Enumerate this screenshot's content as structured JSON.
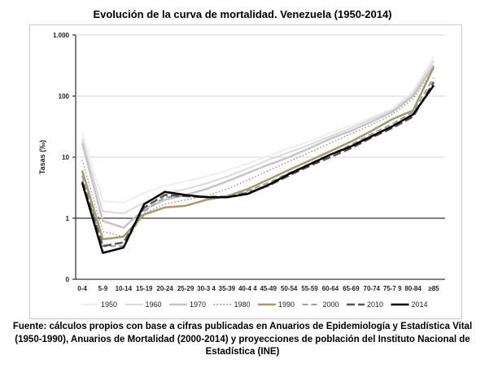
{
  "title": "Evolución de la curva de mortalidad. Venezuela (1950-2014)",
  "source_note": "Fuente: cálculos propios con base a cifras publicadas en Anuarios de Epidemiología y Estadística Vital (1950-1990), Anuarios de Mortalidad (2000-2014) y proyecciones de población del Instituto Nacional de Estadística (INE)",
  "chart_data": {
    "type": "line",
    "ylabel": "Tasas (‰)",
    "yscale": "log",
    "ylim": [
      0.1,
      1000
    ],
    "y_ticks": [
      {
        "value": 1000,
        "label": "1.000"
      },
      {
        "value": 100,
        "label": "100"
      },
      {
        "value": 10,
        "label": "10"
      },
      {
        "value": 1,
        "label": "1"
      },
      {
        "value": 0.1,
        "label": "0"
      }
    ],
    "categories": [
      "0-4",
      "5-9",
      "10-14",
      "15-19",
      "20-24",
      "25-29",
      "30-3 4",
      "35-39",
      "40-4 4",
      "45-49",
      "50-54",
      "55-59",
      "60-64",
      "65-69",
      "70-74",
      "75-7 9",
      "80-84",
      "≥85"
    ],
    "grid": "horizontal",
    "legend_position": "bottom",
    "series": [
      {
        "name": "1950",
        "color": "#eeeeee",
        "dash": "solid",
        "width": 2,
        "values": [
          25,
          1.9,
          1.8,
          2.6,
          3.4,
          4.0,
          4.8,
          6.0,
          7.8,
          10.5,
          14,
          18,
          25,
          33,
          45,
          62,
          120,
          450
        ]
      },
      {
        "name": "1960",
        "color": "#dadada",
        "dash": "solid",
        "width": 2,
        "values": [
          20,
          1.3,
          1.2,
          1.8,
          2.5,
          3.0,
          3.7,
          4.8,
          6.5,
          9.0,
          12,
          16,
          22,
          30,
          42,
          58,
          110,
          380
        ]
      },
      {
        "name": "1970",
        "color": "#c4c4c4",
        "dash": "solid",
        "width": 2.5,
        "values": [
          17,
          0.9,
          0.7,
          1.4,
          2.0,
          2.4,
          3.0,
          4.0,
          5.5,
          7.5,
          10,
          14,
          20,
          27,
          38,
          55,
          100,
          320
        ]
      },
      {
        "name": "1980",
        "color": "#9a9a9a",
        "dash": "dotted",
        "width": 1.5,
        "values": [
          9,
          0.6,
          0.5,
          1.2,
          1.7,
          2.0,
          2.3,
          3.0,
          4.2,
          6.0,
          8.5,
          12,
          17,
          24,
          34,
          50,
          90,
          280
        ]
      },
      {
        "name": "1990",
        "color": "#a39a6e",
        "dash": "solid",
        "width": 2.5,
        "values": [
          6,
          0.45,
          0.5,
          1.15,
          1.5,
          1.6,
          2.0,
          2.3,
          3.0,
          4.3,
          6.2,
          8.8,
          12.5,
          18,
          27,
          42,
          58,
          300
        ]
      },
      {
        "name": "2000",
        "color": "#9f9f9f",
        "dash": "dashed",
        "width": 2,
        "values": [
          5,
          0.35,
          0.35,
          1.3,
          2.2,
          2.3,
          2.3,
          2.3,
          2.8,
          3.8,
          5.5,
          7.8,
          11,
          16,
          24,
          35,
          55,
          200
        ]
      },
      {
        "name": "2010",
        "color": "#555555",
        "dash": "longdash",
        "width": 2.5,
        "values": [
          4,
          0.35,
          0.4,
          1.5,
          2.4,
          2.3,
          2.2,
          2.2,
          2.6,
          3.4,
          5.0,
          7.2,
          10,
          14,
          21,
          30,
          46,
          170
        ]
      },
      {
        "name": "2014",
        "color": "#000000",
        "dash": "solid",
        "width": 2.5,
        "values": [
          3.8,
          0.27,
          0.33,
          1.7,
          2.7,
          2.4,
          2.2,
          2.2,
          2.5,
          3.5,
          5.3,
          7.6,
          11,
          15,
          22,
          32,
          50,
          150
        ]
      }
    ]
  }
}
